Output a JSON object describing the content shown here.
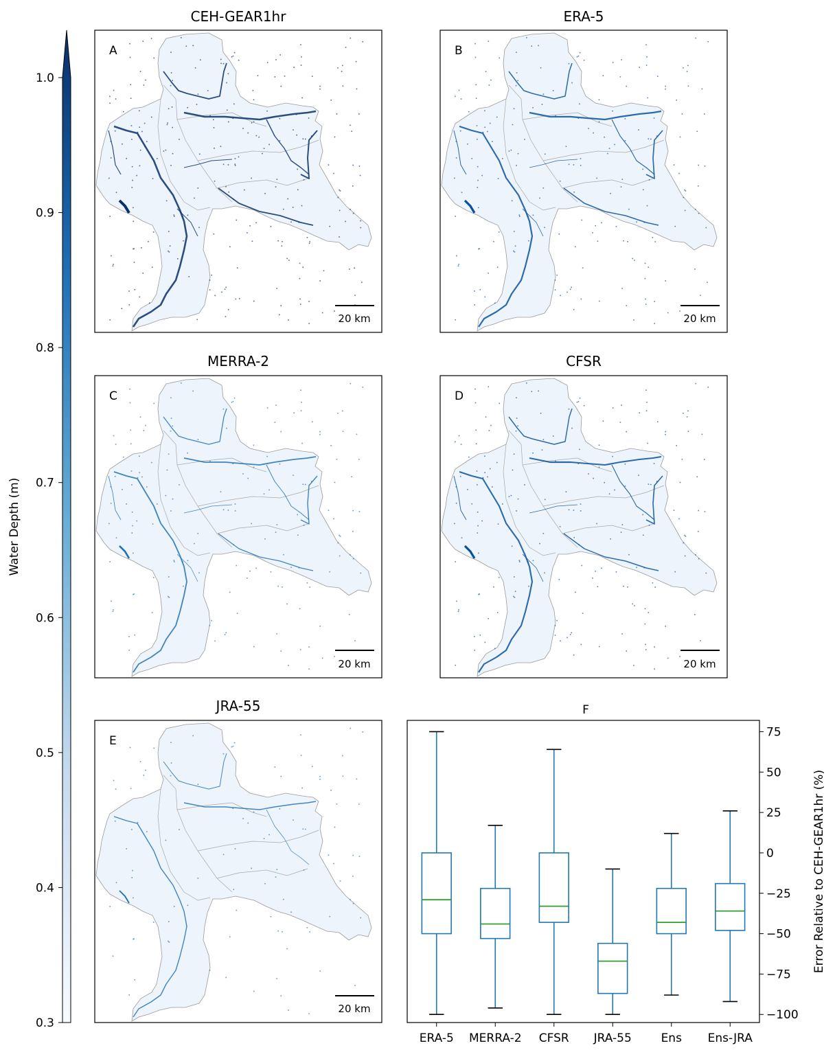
{
  "colorbar": {
    "label": "Water Depth (m)",
    "ticks": [
      1.0,
      0.9,
      0.8,
      0.7,
      0.6,
      0.5,
      0.4,
      0.3
    ],
    "tick_labels": [
      "1.0",
      "0.9",
      "0.8",
      "0.7",
      "0.6",
      "0.5",
      "0.4",
      "0.3"
    ],
    "range": [
      0.3,
      1.0
    ],
    "extend": "max",
    "colormap": "Blues",
    "color_low": "#f7fbff",
    "color_high": "#08306b"
  },
  "maps": [
    {
      "title": "CEH-GEAR1hr",
      "panel_label": "A",
      "scalebar_label": "20 km",
      "wetness": 1.0
    },
    {
      "title": "ERA-5",
      "panel_label": "B",
      "scalebar_label": "20 km",
      "wetness": 0.75
    },
    {
      "title": "MERRA-2",
      "panel_label": "C",
      "scalebar_label": "20 km",
      "wetness": 0.55
    },
    {
      "title": "CFSR",
      "panel_label": "D",
      "scalebar_label": "20 km",
      "wetness": 0.72
    },
    {
      "title": "JRA-55",
      "panel_label": "E",
      "scalebar_label": "20 km",
      "wetness": 0.3
    }
  ],
  "chart_data": {
    "type": "boxplot",
    "title": "F",
    "ylabel": "Error Relative to CEH-GEAR1hr (%)",
    "ylim": [
      -105,
      82
    ],
    "yticks": [
      75,
      50,
      25,
      0,
      -25,
      -50,
      -75,
      -100
    ],
    "ytick_labels": [
      "75",
      "50",
      "25",
      "0",
      "−25",
      "−50",
      "−75",
      "−100"
    ],
    "yaxis_position": "right",
    "categories": [
      "ERA-5",
      "MERRA-2",
      "CFSR",
      "JRA-55",
      "Ens",
      "Ens-JRA"
    ],
    "boxes": [
      {
        "whisker_low": -100,
        "q1": -50,
        "median": -29,
        "q3": 0,
        "whisker_high": 75
      },
      {
        "whisker_low": -96,
        "q1": -53,
        "median": -44,
        "q3": -22,
        "whisker_high": 17
      },
      {
        "whisker_low": -100,
        "q1": -43,
        "median": -33,
        "q3": 0,
        "whisker_high": 64
      },
      {
        "whisker_low": -100,
        "q1": -87,
        "median": -67,
        "q3": -56,
        "whisker_high": -10
      },
      {
        "whisker_low": -88,
        "q1": -50,
        "median": -43,
        "q3": -22,
        "whisker_high": 12
      },
      {
        "whisker_low": -92,
        "q1": -48,
        "median": -36,
        "q3": -19,
        "whisker_high": 26
      }
    ],
    "box_color": "#1f77b4",
    "median_color": "#2ca02c",
    "grid": false
  }
}
